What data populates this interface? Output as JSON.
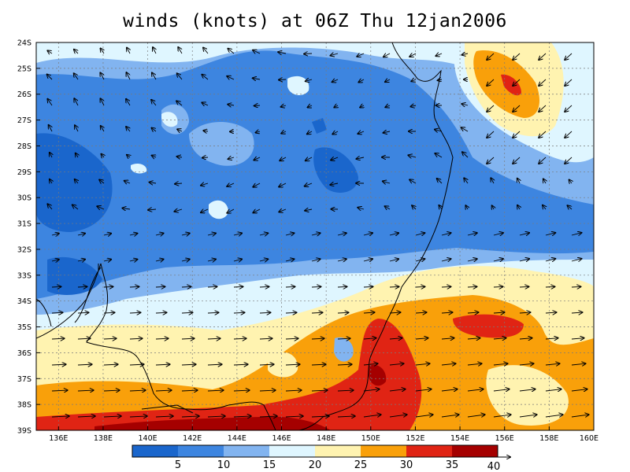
{
  "title": "winds (knots) at 06Z Thu 12jan2006",
  "lat_labels": [
    "24S",
    "25S",
    "26S",
    "27S",
    "28S",
    "29S",
    "30S",
    "31S",
    "32S",
    "33S",
    "34S",
    "35S",
    "36S",
    "37S",
    "38S",
    "39S"
  ],
  "lon_labels": [
    "136E",
    "138E",
    "140E",
    "142E",
    "144E",
    "146E",
    "148E",
    "150E",
    "152E",
    "154E",
    "156E",
    "158E",
    "160E"
  ],
  "colorbar": {
    "tick_labels": [
      "5",
      "10",
      "15",
      "20",
      "25",
      "30",
      "35",
      "40"
    ],
    "colors": [
      "#1a66cc",
      "#3d85e0",
      "#82b4f0",
      "#dff6ff",
      "#fff3b0",
      "#f9a00a",
      "#e02414",
      "#a50000"
    ],
    "scale_vector_label": "40"
  },
  "contour_colors": {
    "0-5": "#1a66cc",
    "5-10": "#3d85e0",
    "10-15": "#82b4f0",
    "15-20": "#dff6ff",
    "20-25": "#fff3b0",
    "25-30": "#f9a00a",
    "30-35": "#e02414",
    "35-40": "#a50000"
  },
  "units": "knots",
  "valid_time": "06Z Thu 12jan2006"
}
